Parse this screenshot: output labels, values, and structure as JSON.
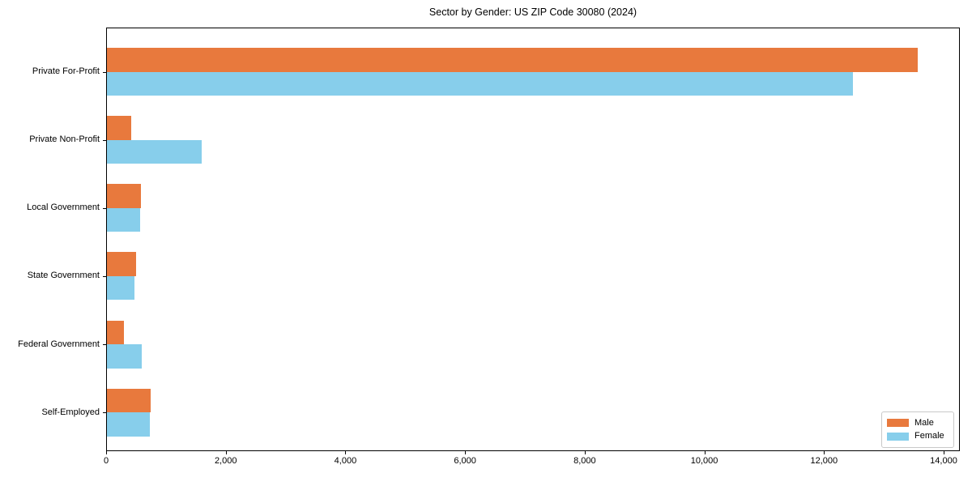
{
  "chart_data": {
    "type": "bar",
    "orientation": "horizontal",
    "title": "Sector by Gender: US ZIP Code 30080 (2024)",
    "categories": [
      "Private For-Profit",
      "Private Non-Profit",
      "Local Government",
      "State Government",
      "Federal Government",
      "Self-Employed"
    ],
    "series": [
      {
        "name": "Male",
        "color": "#E8793D",
        "values": [
          13560,
          425,
          580,
          505,
          295,
          740
        ]
      },
      {
        "name": "Female",
        "color": "#87CEEB",
        "values": [
          12480,
          1600,
          565,
          470,
          595,
          730
        ]
      }
    ],
    "xlim": [
      0,
      14000
    ],
    "x_ticks": [
      {
        "value": 0,
        "label": "0"
      },
      {
        "value": 2000,
        "label": "2,000"
      },
      {
        "value": 4000,
        "label": "4,000"
      },
      {
        "value": 6000,
        "label": "6,000"
      },
      {
        "value": 8000,
        "label": "8,000"
      },
      {
        "value": 10000,
        "label": "10,000"
      },
      {
        "value": 12000,
        "label": "12,000"
      },
      {
        "value": 14000,
        "label": "14,000"
      }
    ],
    "grid": false,
    "legend_position": "lower right",
    "colors": {
      "male": "#E8793D",
      "female": "#87CEEB",
      "axis": "#000000",
      "background": "#FFFFFF"
    }
  }
}
